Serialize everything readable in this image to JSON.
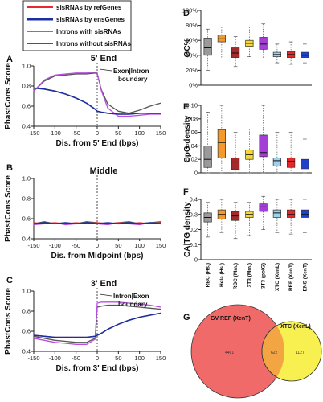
{
  "legend": {
    "items": [
      {
        "label": "sisRNAs by refGenes",
        "color": "#e8282e"
      },
      {
        "label": "sisRNAs by ensGenes",
        "color": "#1a2fa0"
      },
      {
        "label": "Introns with sisRNAs",
        "color": "#b94fe0"
      },
      {
        "label": "Introns without sisRNAs",
        "color": "#555555"
      }
    ]
  },
  "chart_data": [
    {
      "panel": "A",
      "type": "line",
      "title": "5' End",
      "xlabel": "Dis. from 5' End (bps)",
      "ylabel": "PhastCons Score",
      "xlim": [
        -150,
        150
      ],
      "ylim": [
        0.4,
        1.0
      ],
      "xticks": [
        "-150",
        "-100",
        "-50",
        "0",
        "50",
        "100",
        "150"
      ],
      "yticks": [
        "0.4",
        "0.6",
        "0.8",
        "1.0"
      ],
      "annotation": [
        "Exon|Intron",
        "boundary"
      ],
      "x": [
        -150,
        -125,
        -100,
        -75,
        -50,
        -25,
        -5,
        0,
        10,
        25,
        50,
        75,
        100,
        125,
        150
      ],
      "series": [
        {
          "name": "sisRNAs by refGenes",
          "color": "#e8282e",
          "values": [
            0.78,
            0.77,
            0.75,
            0.72,
            0.68,
            0.63,
            0.57,
            0.55,
            0.54,
            0.53,
            0.52,
            0.52,
            0.53,
            0.53,
            0.53
          ]
        },
        {
          "name": "sisRNAs by ensGenes",
          "color": "#1a2fa0",
          "values": [
            0.78,
            0.77,
            0.75,
            0.72,
            0.68,
            0.63,
            0.57,
            0.55,
            0.54,
            0.53,
            0.52,
            0.52,
            0.53,
            0.53,
            0.53
          ]
        },
        {
          "name": "Introns with sisRNAs",
          "color": "#b94fe0",
          "values": [
            0.75,
            0.86,
            0.91,
            0.92,
            0.93,
            0.93,
            0.94,
            0.93,
            0.75,
            0.58,
            0.5,
            0.5,
            0.51,
            0.52,
            0.52
          ]
        },
        {
          "name": "Introns without sisRNAs",
          "color": "#555555",
          "values": [
            0.75,
            0.85,
            0.9,
            0.91,
            0.92,
            0.92,
            0.93,
            0.92,
            0.76,
            0.62,
            0.55,
            0.53,
            0.56,
            0.6,
            0.63
          ]
        }
      ]
    },
    {
      "panel": "B",
      "type": "line",
      "title": "Middle",
      "xlabel": "Dis. from Midpoint (bps)",
      "ylabel": "PhastCons Score",
      "xlim": [
        -150,
        150
      ],
      "ylim": [
        0.4,
        1.0
      ],
      "xticks": [
        "-150",
        "-100",
        "-50",
        "0",
        "50",
        "100",
        "150"
      ],
      "yticks": [
        "0.4",
        "0.6",
        "0.8",
        "1.0"
      ],
      "x": [
        -150,
        -125,
        -100,
        -75,
        -50,
        -25,
        0,
        25,
        50,
        75,
        100,
        125,
        150
      ],
      "series": [
        {
          "name": "sisRNAs by refGenes",
          "color": "#e8282e",
          "values": [
            0.56,
            0.55,
            0.56,
            0.55,
            0.56,
            0.55,
            0.56,
            0.55,
            0.56,
            0.55,
            0.56,
            0.55,
            0.56
          ]
        },
        {
          "name": "sisRNAs by ensGenes",
          "color": "#1a2fa0",
          "values": [
            0.55,
            0.56,
            0.55,
            0.56,
            0.55,
            0.56,
            0.55,
            0.56,
            0.55,
            0.56,
            0.55,
            0.56,
            0.55
          ]
        },
        {
          "name": "Introns with sisRNAs",
          "color": "#b94fe0",
          "values": [
            0.54,
            0.55,
            0.56,
            0.54,
            0.55,
            0.56,
            0.55,
            0.54,
            0.56,
            0.55,
            0.54,
            0.56,
            0.55
          ]
        },
        {
          "name": "Introns without sisRNAs",
          "color": "#555555",
          "values": [
            0.55,
            0.57,
            0.55,
            0.56,
            0.55,
            0.57,
            0.56,
            0.55,
            0.56,
            0.57,
            0.55,
            0.56,
            0.57
          ]
        }
      ]
    },
    {
      "panel": "C",
      "type": "line",
      "title": "3' End",
      "xlabel": "Dis. from 3' End (bps)",
      "ylabel": "PhastCons Score",
      "xlim": [
        -150,
        150
      ],
      "ylim": [
        0.4,
        1.0
      ],
      "xticks": [
        "-150",
        "-100",
        "-50",
        "0",
        "50",
        "100",
        "150"
      ],
      "yticks": [
        "0.4",
        "0.6",
        "0.8",
        "1.0"
      ],
      "annotation": [
        "Intron|Exon",
        "boundary"
      ],
      "x": [
        -150,
        -125,
        -100,
        -75,
        -50,
        -25,
        -5,
        0,
        10,
        25,
        50,
        75,
        100,
        125,
        150
      ],
      "series": [
        {
          "name": "sisRNAs by refGenes",
          "color": "#e8282e",
          "values": [
            0.56,
            0.55,
            0.54,
            0.54,
            0.54,
            0.54,
            0.55,
            0.56,
            0.58,
            0.62,
            0.67,
            0.71,
            0.74,
            0.76,
            0.78
          ]
        },
        {
          "name": "sisRNAs by ensGenes",
          "color": "#1a2fa0",
          "values": [
            0.56,
            0.55,
            0.54,
            0.54,
            0.54,
            0.54,
            0.55,
            0.56,
            0.58,
            0.62,
            0.67,
            0.71,
            0.74,
            0.76,
            0.78
          ]
        },
        {
          "name": "Introns with sisRNAs",
          "color": "#b94fe0",
          "values": [
            0.53,
            0.51,
            0.49,
            0.48,
            0.47,
            0.47,
            0.52,
            0.88,
            0.89,
            0.89,
            0.89,
            0.88,
            0.87,
            0.86,
            0.84
          ]
        },
        {
          "name": "Introns without sisRNAs",
          "color": "#555555",
          "values": [
            0.55,
            0.53,
            0.51,
            0.5,
            0.49,
            0.49,
            0.53,
            0.84,
            0.85,
            0.86,
            0.86,
            0.85,
            0.84,
            0.83,
            0.82
          ]
        }
      ]
    },
    {
      "panel": "D",
      "type": "box",
      "ylabel": "GC%",
      "ylim": [
        0,
        100
      ],
      "yticks": [
        "0%",
        "20%",
        "40%",
        "60%",
        "80%",
        "100%"
      ],
      "categories": [
        "RBC (Hs.)",
        "Hela (Hs.)",
        "RBC (Mm.)",
        "3T3 (Mm.)",
        "3T3 (polG)",
        "XTC (XenL)",
        "REF (XenT)",
        "ENS (XenT)"
      ],
      "colors": [
        "#9a9a9a",
        "#f39a2a",
        "#a52a2a",
        "#f2d63a",
        "#a33fd6",
        "#9ad3ee",
        "#e82828",
        "#1f3fd0"
      ],
      "boxes": [
        {
          "min": 20,
          "q1": 40,
          "median": 50,
          "q3": 63,
          "max": 75
        },
        {
          "min": 35,
          "q1": 58,
          "median": 62,
          "q3": 67,
          "max": 78
        },
        {
          "min": 25,
          "q1": 37,
          "median": 43,
          "q3": 50,
          "max": 65
        },
        {
          "min": 38,
          "q1": 52,
          "median": 56,
          "q3": 60,
          "max": 78
        },
        {
          "min": 35,
          "q1": 48,
          "median": 55,
          "q3": 64,
          "max": 82
        },
        {
          "min": 30,
          "q1": 38,
          "median": 41,
          "q3": 44,
          "max": 55
        },
        {
          "min": 28,
          "q1": 37,
          "median": 41,
          "q3": 45,
          "max": 58
        },
        {
          "min": 30,
          "q1": 37,
          "median": 40,
          "q3": 44,
          "max": 55
        }
      ]
    },
    {
      "panel": "E",
      "type": "box",
      "ylabel": "CpG density",
      "ylim": [
        0,
        0.1
      ],
      "yticks": [
        "0",
        "0.02",
        "0.04",
        "0.06",
        "0.08",
        "0.10"
      ],
      "categories": [
        "RBC (Hs.)",
        "Hela (Hs.)",
        "RBC (Mm.)",
        "3T3 (Mm.)",
        "3T3 (polG)",
        "XTC (XenL)",
        "REF (XenT)",
        "ENS (XenT)"
      ],
      "colors": [
        "#9a9a9a",
        "#f39a2a",
        "#a52a2a",
        "#f2d63a",
        "#a33fd6",
        "#9ad3ee",
        "#e82828",
        "#1f3fd0"
      ],
      "boxes": [
        {
          "min": 0,
          "q1": 0.008,
          "median": 0.02,
          "q3": 0.04,
          "max": 0.09
        },
        {
          "min": 0,
          "q1": 0.022,
          "median": 0.045,
          "q3": 0.064,
          "max": 0.1
        },
        {
          "min": 0,
          "q1": 0.005,
          "median": 0.016,
          "q3": 0.022,
          "max": 0.06
        },
        {
          "min": 0,
          "q1": 0.02,
          "median": 0.027,
          "q3": 0.034,
          "max": 0.065
        },
        {
          "min": 0,
          "q1": 0.024,
          "median": 0.03,
          "q3": 0.056,
          "max": 0.1
        },
        {
          "min": 0,
          "q1": 0.01,
          "median": 0.018,
          "q3": 0.022,
          "max": 0.06
        },
        {
          "min": 0,
          "q1": 0.008,
          "median": 0.017,
          "q3": 0.022,
          "max": 0.06
        },
        {
          "min": 0,
          "q1": 0.006,
          "median": 0.016,
          "q3": 0.02,
          "max": 0.05
        }
      ]
    },
    {
      "panel": "F",
      "type": "box",
      "ylabel": "CA|TG density",
      "ylim": [
        0,
        0.4
      ],
      "yticks": [
        "0",
        "0.1",
        "0.2",
        "0.3",
        "0.4"
      ],
      "categories": [
        "RBC (Hs.)",
        "Hela (Hs.)",
        "RBC (Mm.)",
        "3T3 (Mm.)",
        "3T3 (polG)",
        "XTC (XenL)",
        "REF (XenT)",
        "ENS (XenT)"
      ],
      "colors": [
        "#9a9a9a",
        "#f39a2a",
        "#a52a2a",
        "#f2d63a",
        "#a33fd6",
        "#9ad3ee",
        "#e82828",
        "#1f3fd0"
      ],
      "boxes": [
        {
          "min": 0.15,
          "q1": 0.25,
          "median": 0.28,
          "q3": 0.31,
          "max": 0.38
        },
        {
          "min": 0.18,
          "q1": 0.27,
          "median": 0.3,
          "q3": 0.33,
          "max": 0.4
        },
        {
          "min": 0.14,
          "q1": 0.26,
          "median": 0.29,
          "q3": 0.32,
          "max": 0.38
        },
        {
          "min": 0.16,
          "q1": 0.28,
          "median": 0.3,
          "q3": 0.32,
          "max": 0.38
        },
        {
          "min": 0.2,
          "q1": 0.32,
          "median": 0.35,
          "q3": 0.37,
          "max": 0.42
        },
        {
          "min": 0.18,
          "q1": 0.28,
          "median": 0.31,
          "q3": 0.33,
          "max": 0.4
        },
        {
          "min": 0.17,
          "q1": 0.28,
          "median": 0.3,
          "q3": 0.33,
          "max": 0.4
        },
        {
          "min": 0.18,
          "q1": 0.28,
          "median": 0.3,
          "q3": 0.33,
          "max": 0.4
        }
      ]
    }
  ],
  "venn": {
    "panel": "G",
    "left_label": "GV REF (XenT)",
    "right_label": "XTC (XenL)",
    "left_only": "4461",
    "overlap": "622",
    "right_only": "1127",
    "left_color": "#f06a6a",
    "right_color": "#f8f050",
    "overlap_color": "#f3a544"
  },
  "panel_letters": {
    "a": "A",
    "b": "B",
    "c": "C",
    "d": "D",
    "e": "E",
    "f": "F",
    "g": "G"
  }
}
